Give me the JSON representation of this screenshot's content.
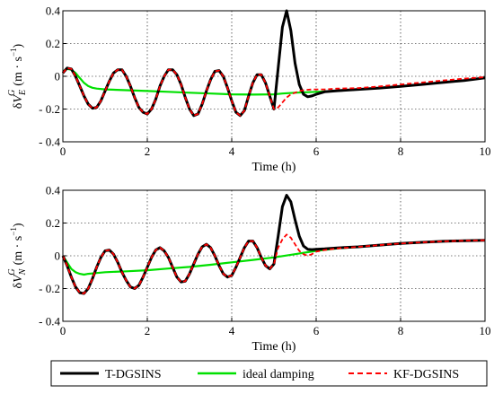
{
  "chart_data": [
    {
      "type": "line",
      "ylabel": {
        "delta": "δ",
        "var": "V",
        "sup": "G",
        "sub": "E",
        "unit": "(m · s",
        "exp": "−1",
        "close": ")"
      },
      "xlabel": "Time (h)",
      "xlim": [
        0,
        10
      ],
      "ylim": [
        -0.4,
        0.4
      ],
      "xticks": [
        0,
        2,
        4,
        6,
        8,
        10
      ],
      "yticks": [
        -0.4,
        -0.2,
        0,
        0.2,
        0.4
      ],
      "yticklabels": [
        "- 0.4",
        "- 0.2",
        "0",
        "0.2",
        "0.4"
      ],
      "grid": true,
      "series": [
        {
          "name": "ideal damping",
          "color": "#00e000",
          "x": [
            0,
            0.1,
            0.2,
            0.3,
            0.4,
            0.5,
            0.6,
            0.7,
            0.8,
            1,
            1.5,
            2,
            2.5,
            3,
            3.5,
            4,
            4.5,
            5,
            5.2,
            5.5,
            6,
            6.5,
            7,
            7.5,
            8,
            8.5,
            9,
            9.5,
            10
          ],
          "y": [
            0.03,
            0.045,
            0.04,
            0.02,
            -0.01,
            -0.04,
            -0.06,
            -0.07,
            -0.075,
            -0.08,
            -0.085,
            -0.09,
            -0.095,
            -0.1,
            -0.105,
            -0.11,
            -0.112,
            -0.11,
            -0.105,
            -0.1,
            -0.095,
            -0.088,
            -0.08,
            -0.072,
            -0.062,
            -0.05,
            -0.038,
            -0.026,
            -0.01
          ]
        },
        {
          "name": "KF-DGSINS",
          "color": "#ff0000",
          "x": [
            0,
            0.1,
            0.2,
            0.3,
            0.4,
            0.5,
            0.6,
            0.7,
            0.8,
            0.9,
            1,
            1.1,
            1.2,
            1.3,
            1.4,
            1.5,
            1.6,
            1.7,
            1.8,
            1.9,
            2,
            2.1,
            2.2,
            2.3,
            2.4,
            2.5,
            2.6,
            2.7,
            2.8,
            2.9,
            3,
            3.1,
            3.2,
            3.3,
            3.4,
            3.5,
            3.6,
            3.7,
            3.8,
            3.9,
            4,
            4.1,
            4.2,
            4.3,
            4.4,
            4.5,
            4.6,
            4.7,
            4.8,
            4.9,
            5,
            5.1,
            5.2,
            5.3,
            5.4,
            5.5,
            5.6,
            5.7,
            5.8,
            5.9,
            6,
            6.2,
            6.5,
            7,
            7.5,
            8,
            8.5,
            9,
            9.5,
            10
          ],
          "y": [
            0.02,
            0.05,
            0.045,
            0.0,
            -0.06,
            -0.12,
            -0.17,
            -0.195,
            -0.19,
            -0.15,
            -0.09,
            -0.03,
            0.02,
            0.04,
            0.04,
            0.0,
            -0.06,
            -0.13,
            -0.19,
            -0.22,
            -0.23,
            -0.2,
            -0.14,
            -0.06,
            0.0,
            0.04,
            0.04,
            0.01,
            -0.05,
            -0.13,
            -0.2,
            -0.24,
            -0.23,
            -0.17,
            -0.09,
            -0.02,
            0.03,
            0.035,
            0.0,
            -0.07,
            -0.15,
            -0.22,
            -0.24,
            -0.21,
            -0.12,
            -0.04,
            0.01,
            0.01,
            -0.04,
            -0.12,
            -0.2,
            -0.19,
            -0.16,
            -0.13,
            -0.11,
            -0.1,
            -0.09,
            -0.085,
            -0.082,
            -0.08,
            -0.08,
            -0.08,
            -0.075,
            -0.072,
            -0.062,
            -0.05,
            -0.038,
            -0.026,
            -0.014,
            -0.005
          ]
        },
        {
          "name": "T-DGSINS",
          "color": "#000000",
          "x": [
            0,
            0.1,
            0.2,
            0.3,
            0.4,
            0.5,
            0.6,
            0.7,
            0.8,
            0.9,
            1,
            1.1,
            1.2,
            1.3,
            1.4,
            1.5,
            1.6,
            1.7,
            1.8,
            1.9,
            2,
            2.1,
            2.2,
            2.3,
            2.4,
            2.5,
            2.6,
            2.7,
            2.8,
            2.9,
            3,
            3.1,
            3.2,
            3.3,
            3.4,
            3.5,
            3.6,
            3.7,
            3.8,
            3.9,
            4,
            4.1,
            4.2,
            4.3,
            4.4,
            4.5,
            4.6,
            4.7,
            4.8,
            4.9,
            5,
            5.1,
            5.2,
            5.3,
            5.4,
            5.5,
            5.6,
            5.7,
            5.8,
            5.9,
            6,
            6.2,
            6.5,
            7,
            7.5,
            8,
            8.5,
            9,
            9.5,
            10
          ],
          "y": [
            0.02,
            0.05,
            0.045,
            0.0,
            -0.06,
            -0.12,
            -0.17,
            -0.195,
            -0.19,
            -0.15,
            -0.09,
            -0.03,
            0.02,
            0.04,
            0.04,
            0.0,
            -0.06,
            -0.13,
            -0.19,
            -0.22,
            -0.23,
            -0.2,
            -0.14,
            -0.06,
            0.0,
            0.04,
            0.04,
            0.01,
            -0.05,
            -0.13,
            -0.2,
            -0.24,
            -0.23,
            -0.17,
            -0.09,
            -0.02,
            0.03,
            0.035,
            0.0,
            -0.07,
            -0.15,
            -0.22,
            -0.24,
            -0.21,
            -0.12,
            -0.04,
            0.01,
            0.01,
            -0.04,
            -0.12,
            -0.2,
            0.05,
            0.3,
            0.4,
            0.28,
            0.08,
            -0.05,
            -0.11,
            -0.125,
            -0.12,
            -0.11,
            -0.095,
            -0.088,
            -0.08,
            -0.072,
            -0.062,
            -0.05,
            -0.038,
            -0.026,
            -0.01
          ]
        }
      ]
    },
    {
      "type": "line",
      "ylabel": {
        "delta": "δ",
        "var": "V",
        "sup": "G",
        "sub": "N",
        "unit": "(m · s",
        "exp": "−1",
        "close": ")"
      },
      "xlabel": "Time (h)",
      "xlim": [
        0,
        10
      ],
      "ylim": [
        -0.4,
        0.4
      ],
      "xticks": [
        0,
        2,
        4,
        6,
        8,
        10
      ],
      "yticks": [
        -0.4,
        -0.2,
        0,
        0.2,
        0.4
      ],
      "yticklabels": [
        "- 0.4",
        "- 0.2",
        "0",
        "0.2",
        "0.4"
      ],
      "grid": true,
      "series": [
        {
          "name": "ideal damping",
          "color": "#00e000",
          "x": [
            0,
            0.1,
            0.2,
            0.3,
            0.4,
            0.5,
            0.6,
            0.8,
            1,
            1.5,
            2,
            2.5,
            3,
            3.5,
            4,
            4.5,
            5,
            5.5,
            6,
            6.5,
            7,
            7.5,
            8,
            8.5,
            9,
            9.5,
            10
          ],
          "y": [
            0.0,
            -0.04,
            -0.08,
            -0.1,
            -0.11,
            -0.115,
            -0.11,
            -0.105,
            -0.1,
            -0.095,
            -0.088,
            -0.078,
            -0.068,
            -0.055,
            -0.04,
            -0.025,
            -0.01,
            0.01,
            0.03,
            0.045,
            0.055,
            0.065,
            0.075,
            0.082,
            0.088,
            0.092,
            0.095
          ]
        },
        {
          "name": "KF-DGSINS",
          "color": "#ff0000",
          "x": [
            0,
            0.1,
            0.2,
            0.3,
            0.4,
            0.5,
            0.6,
            0.7,
            0.8,
            0.9,
            1,
            1.1,
            1.2,
            1.3,
            1.4,
            1.5,
            1.6,
            1.7,
            1.8,
            1.9,
            2,
            2.1,
            2.2,
            2.3,
            2.4,
            2.5,
            2.6,
            2.7,
            2.8,
            2.9,
            3,
            3.1,
            3.2,
            3.3,
            3.4,
            3.5,
            3.6,
            3.7,
            3.8,
            3.9,
            4,
            4.1,
            4.2,
            4.3,
            4.4,
            4.5,
            4.6,
            4.7,
            4.8,
            4.9,
            5,
            5.1,
            5.2,
            5.3,
            5.4,
            5.5,
            5.6,
            5.7,
            5.8,
            5.9,
            6,
            6.2,
            6.5,
            7,
            7.5,
            8,
            8.5,
            9,
            9.5,
            10
          ],
          "y": [
            0.0,
            -0.06,
            -0.13,
            -0.19,
            -0.225,
            -0.23,
            -0.2,
            -0.14,
            -0.07,
            -0.01,
            0.03,
            0.035,
            0.01,
            -0.04,
            -0.1,
            -0.15,
            -0.19,
            -0.2,
            -0.18,
            -0.13,
            -0.07,
            -0.01,
            0.035,
            0.05,
            0.03,
            -0.01,
            -0.07,
            -0.13,
            -0.16,
            -0.155,
            -0.11,
            -0.05,
            0.01,
            0.055,
            0.07,
            0.05,
            0.0,
            -0.06,
            -0.11,
            -0.13,
            -0.12,
            -0.07,
            -0.01,
            0.05,
            0.09,
            0.09,
            0.05,
            -0.01,
            -0.06,
            -0.08,
            -0.05,
            0.05,
            0.1,
            0.13,
            0.11,
            0.07,
            0.03,
            0.01,
            0.0,
            0.01,
            0.025,
            0.035,
            0.045,
            0.055,
            0.065,
            0.075,
            0.082,
            0.088,
            0.092,
            0.095
          ]
        },
        {
          "name": "T-DGSINS",
          "color": "#000000",
          "x": [
            0,
            0.1,
            0.2,
            0.3,
            0.4,
            0.5,
            0.6,
            0.7,
            0.8,
            0.9,
            1,
            1.1,
            1.2,
            1.3,
            1.4,
            1.5,
            1.6,
            1.7,
            1.8,
            1.9,
            2,
            2.1,
            2.2,
            2.3,
            2.4,
            2.5,
            2.6,
            2.7,
            2.8,
            2.9,
            3,
            3.1,
            3.2,
            3.3,
            3.4,
            3.5,
            3.6,
            3.7,
            3.8,
            3.9,
            4,
            4.1,
            4.2,
            4.3,
            4.4,
            4.5,
            4.6,
            4.7,
            4.8,
            4.9,
            5,
            5.1,
            5.2,
            5.3,
            5.4,
            5.5,
            5.6,
            5.7,
            5.8,
            5.9,
            6,
            6.2,
            6.5,
            7,
            7.5,
            8,
            8.5,
            9,
            9.5,
            10
          ],
          "y": [
            0.0,
            -0.06,
            -0.13,
            -0.19,
            -0.225,
            -0.23,
            -0.2,
            -0.14,
            -0.07,
            -0.01,
            0.03,
            0.035,
            0.01,
            -0.04,
            -0.1,
            -0.15,
            -0.19,
            -0.2,
            -0.18,
            -0.13,
            -0.07,
            -0.01,
            0.035,
            0.05,
            0.03,
            -0.01,
            -0.07,
            -0.13,
            -0.16,
            -0.155,
            -0.11,
            -0.05,
            0.01,
            0.055,
            0.07,
            0.05,
            0.0,
            -0.06,
            -0.11,
            -0.13,
            -0.12,
            -0.07,
            -0.01,
            0.05,
            0.09,
            0.09,
            0.05,
            -0.01,
            -0.06,
            -0.08,
            -0.05,
            0.12,
            0.3,
            0.37,
            0.33,
            0.22,
            0.12,
            0.06,
            0.04,
            0.038,
            0.04,
            0.042,
            0.048,
            0.055,
            0.065,
            0.075,
            0.082,
            0.088,
            0.092,
            0.095
          ]
        }
      ]
    }
  ],
  "legend": {
    "placement": "bottom",
    "entries": [
      {
        "label": "T-DGSINS",
        "color": "#000000",
        "style": "solid"
      },
      {
        "label": "ideal damping",
        "color": "#00e000",
        "style": "solid"
      },
      {
        "label": "KF-DGSINS",
        "color": "#ff0000",
        "style": "dashed"
      }
    ]
  }
}
